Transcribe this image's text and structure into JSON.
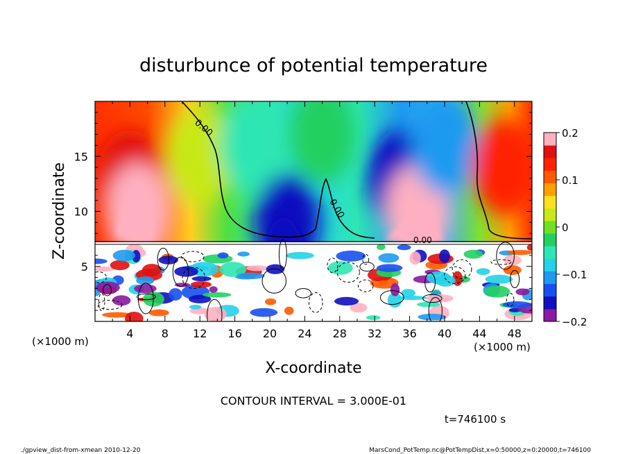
{
  "chart_data": {
    "type": "heatmap",
    "title": "disturbunce of potential temperature",
    "xlabel": "X-coordinate",
    "ylabel": "Z-coordinate",
    "x_unit": "(×1000 m)",
    "y_unit": "(×1000 m)",
    "xlim": [
      0,
      50
    ],
    "ylim": [
      0,
      20
    ],
    "x_ticks": [
      "4",
      "8",
      "12",
      "16",
      "20",
      "24",
      "28",
      "32",
      "36",
      "40",
      "44",
      "48"
    ],
    "y_ticks": [
      "5",
      "10",
      "15"
    ],
    "colorbar": {
      "range": [
        -0.2,
        0.2
      ],
      "ticks": [
        "0.2",
        "0.1",
        "0",
        "−0.1",
        "−0.2"
      ],
      "colors": [
        "#8a1aa0",
        "#1010c0",
        "#1850f0",
        "#1f9af0",
        "#23d2e8",
        "#2ee6b4",
        "#22d060",
        "#70e020",
        "#c8e818",
        "#ffe020",
        "#ffa000",
        "#ff5a00",
        "#ff2000",
        "#e01010",
        "#ffb0c0"
      ]
    },
    "contour_labels": [
      "0.00",
      "0.00",
      "0.00"
    ],
    "contour_interval_text": "CONTOUR INTERVAL = 3.000E-01",
    "time_text": "t=746100 s",
    "footer_left": "./gpview_dist-from-xmean  2010-12-20",
    "footer_right": "MarsCond_PotTemp.nc@PotTempDist,x=0:50000,z=0:20000,t=746100",
    "upper_field_samples": [
      {
        "x": 4,
        "z": 13,
        "value": 0.16
      },
      {
        "x": 5,
        "z": 10,
        "value": 0.2
      },
      {
        "x": 12,
        "z": 15,
        "value": 0.03
      },
      {
        "x": 18,
        "z": 16,
        "value": -0.05
      },
      {
        "x": 22,
        "z": 9,
        "value": -0.16
      },
      {
        "x": 26,
        "z": 17,
        "value": -0.03
      },
      {
        "x": 35,
        "z": 13,
        "value": -0.15
      },
      {
        "x": 37,
        "z": 10,
        "value": 0.18
      },
      {
        "x": 40,
        "z": 16,
        "value": -0.1
      },
      {
        "x": 47,
        "z": 14,
        "value": 0.14
      }
    ]
  }
}
